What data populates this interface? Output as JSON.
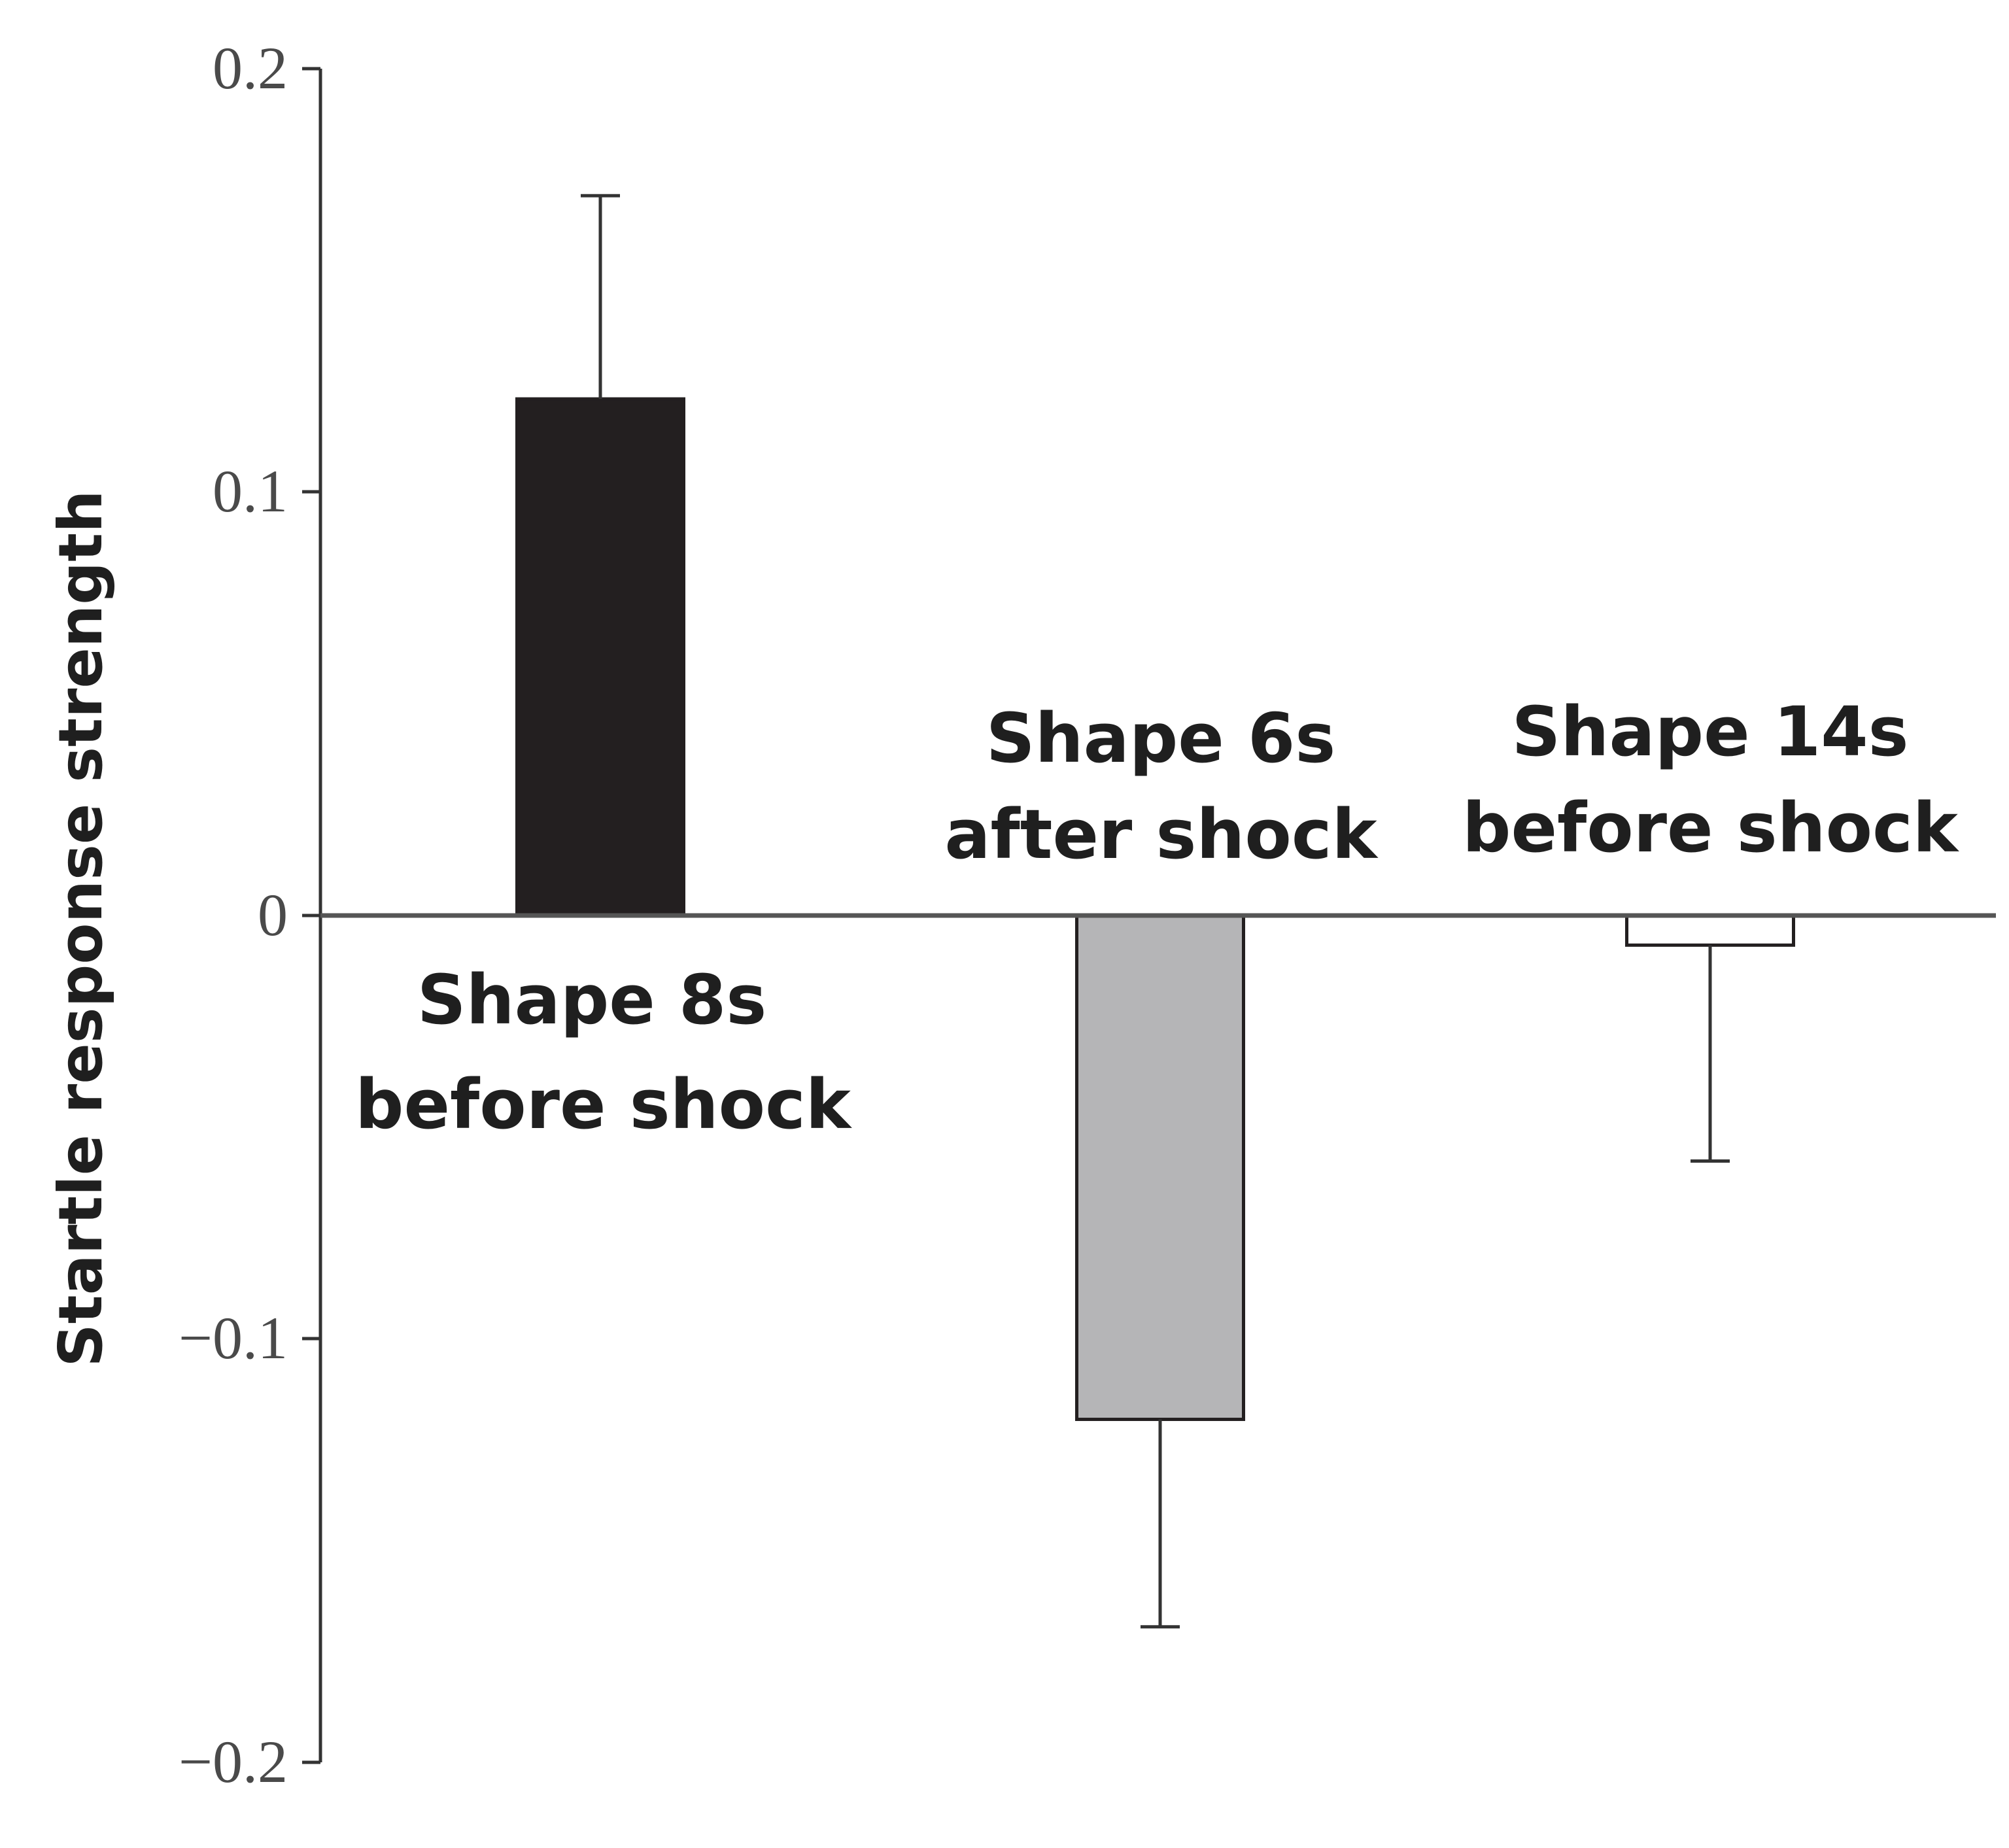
{
  "chart_data": {
    "type": "bar",
    "title": "",
    "xlabel": "",
    "ylabel": "Startle response strength",
    "ylim": [
      -0.2,
      0.2
    ],
    "yticks": [
      0.2,
      0.1,
      0,
      -0.1,
      -0.2
    ],
    "ytick_labels": [
      "0.2",
      "0.1",
      "0",
      "−0.1",
      "−0.2"
    ],
    "grid": false,
    "categories": [
      {
        "line1": "Shape 8s",
        "line2": "before shock"
      },
      {
        "line1": "Shape 6s",
        "line2": "after shock"
      },
      {
        "line1": "Shape 14s",
        "line2": "before shock"
      }
    ],
    "values": [
      0.122,
      -0.119,
      -0.007
    ],
    "error_bars": [
      0.048,
      0.049,
      0.051
    ],
    "colors": [
      "#231f20",
      "#b5b5b7",
      "#ffffff"
    ]
  }
}
